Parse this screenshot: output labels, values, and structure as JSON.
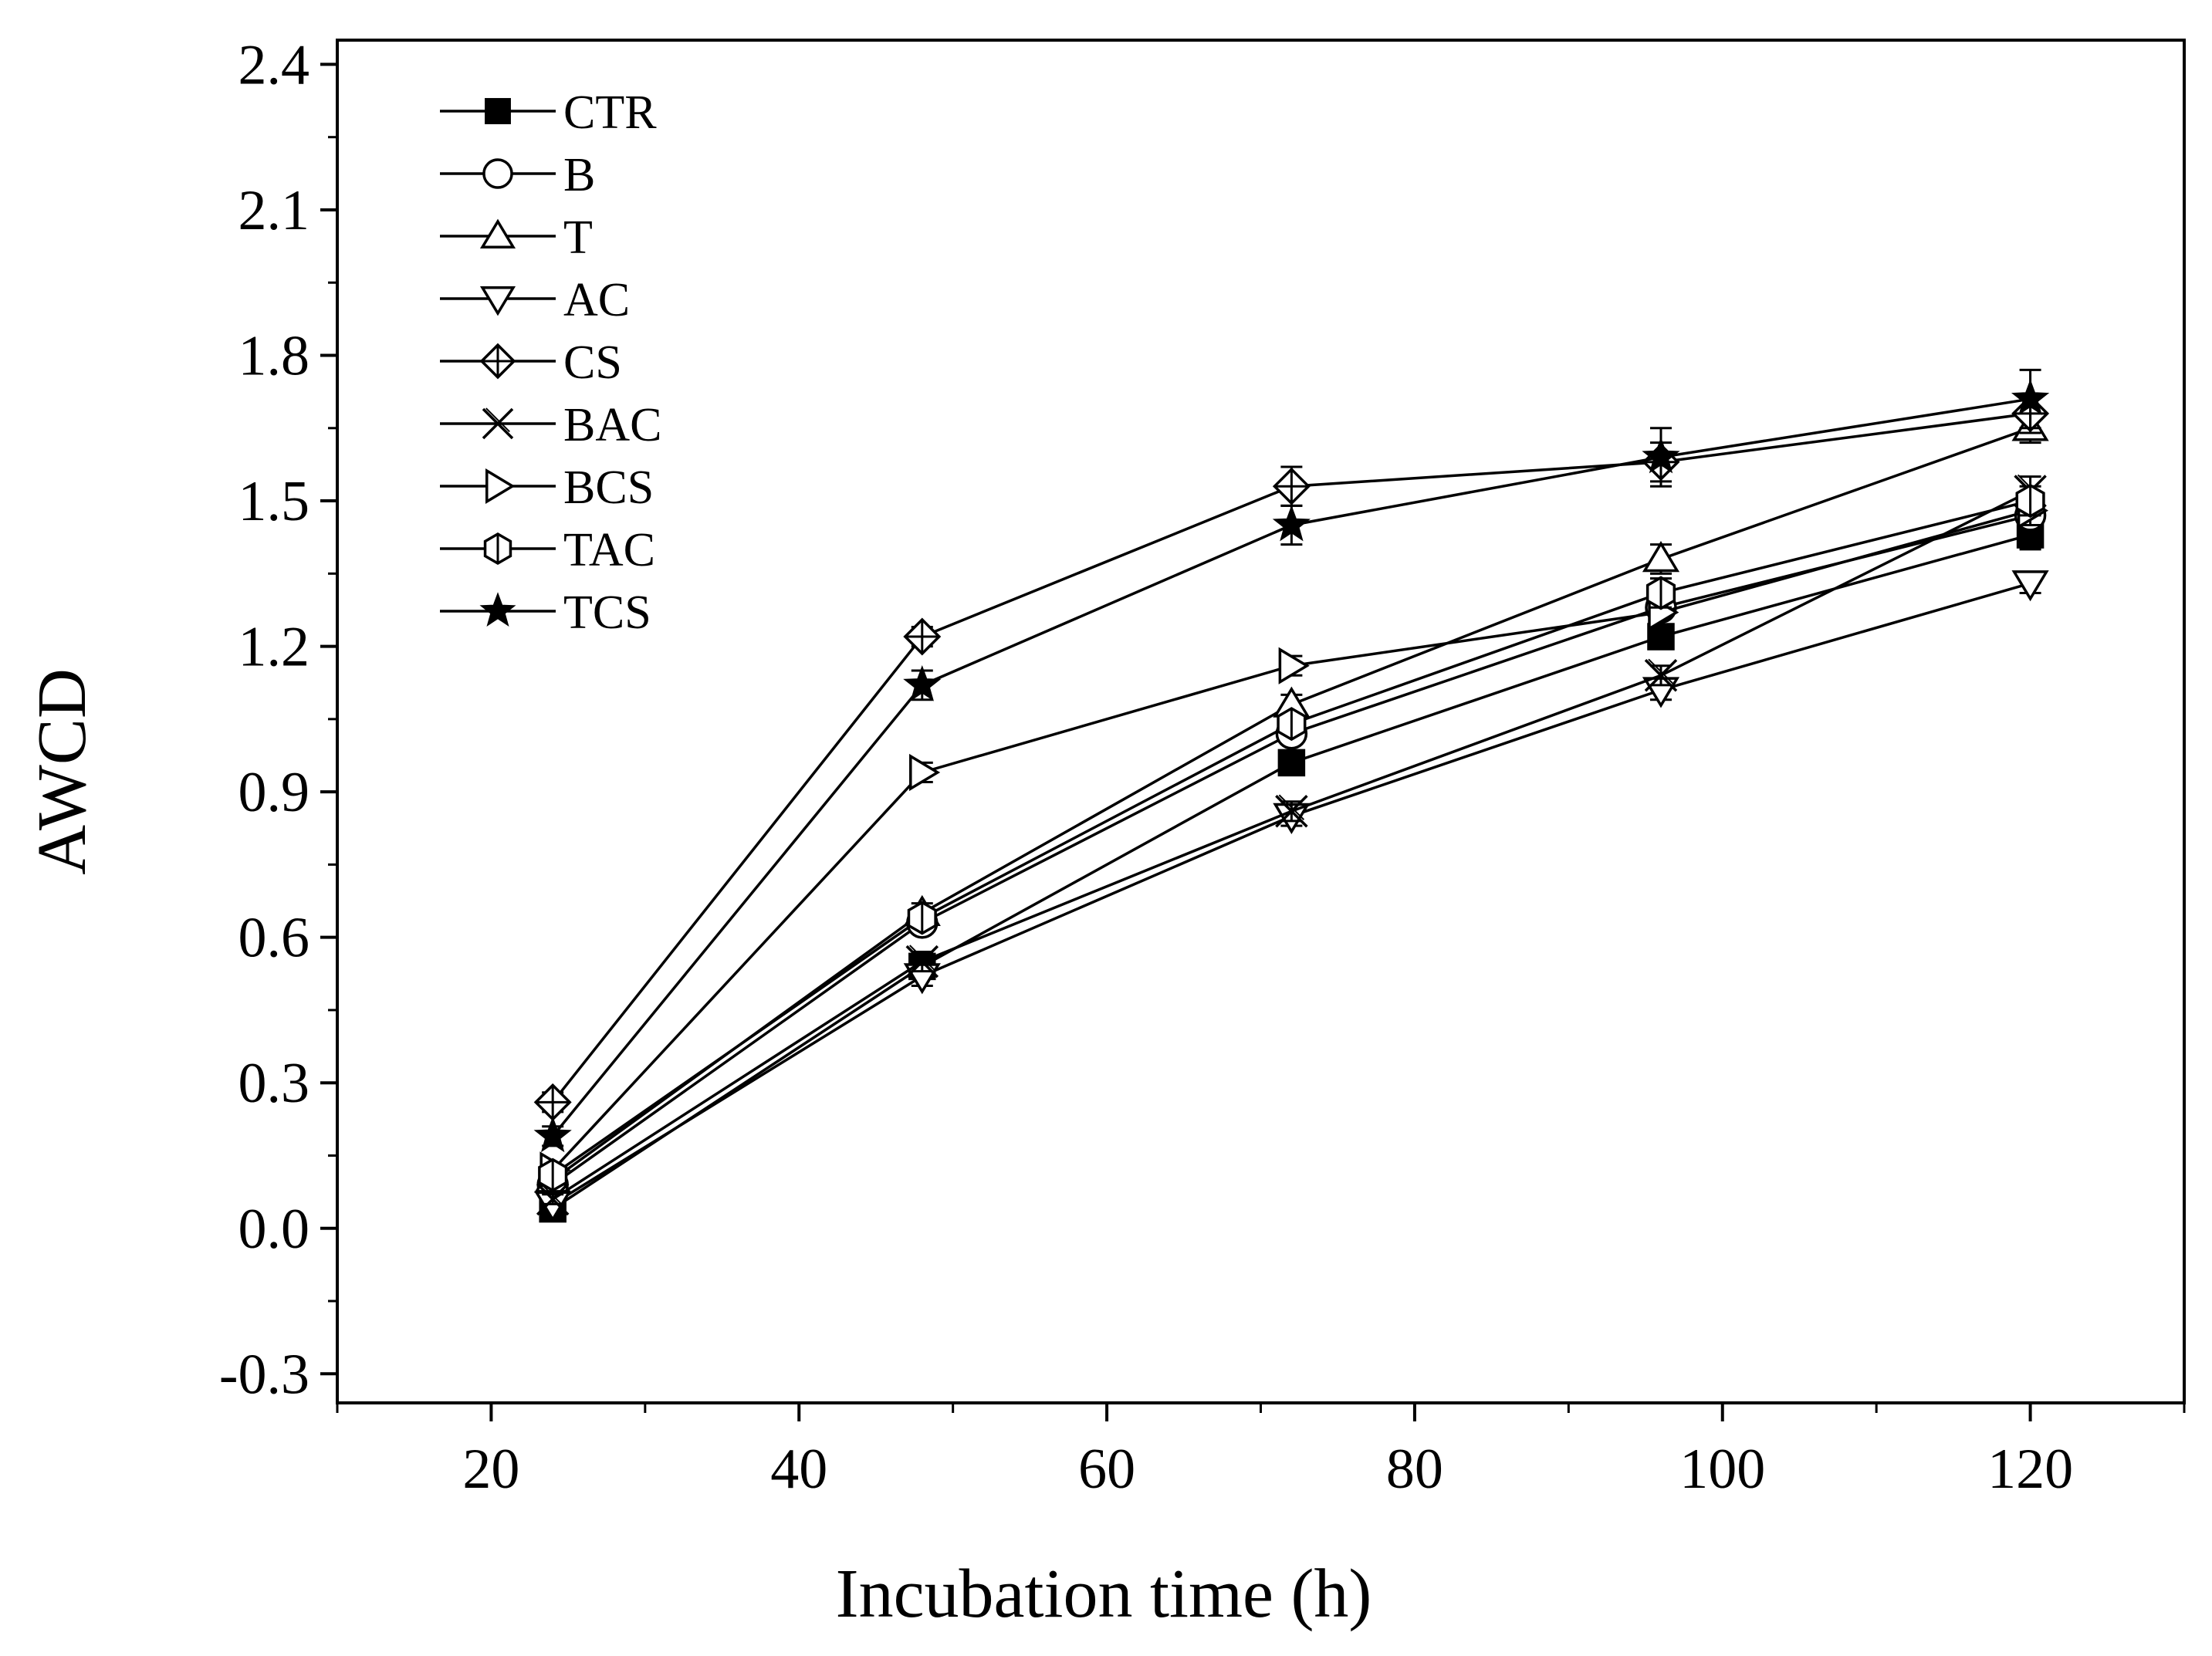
{
  "chart_data": {
    "type": "line",
    "title": "",
    "xlabel": "Incubation time (h)",
    "ylabel": "AWCD",
    "xlim": [
      10,
      130
    ],
    "ylim": [
      -0.36,
      2.45
    ],
    "xticks": [
      20,
      40,
      60,
      80,
      100,
      120
    ],
    "yticks": [
      -0.3,
      0.0,
      0.3,
      0.6,
      0.9,
      1.2,
      1.5,
      1.8,
      2.1,
      2.4
    ],
    "xtick_labels": [
      "20",
      "40",
      "60",
      "80",
      "100",
      "120"
    ],
    "ytick_labels": [
      "-0.3",
      "0.0",
      "0.3",
      "0.6",
      "0.9",
      "1.2",
      "1.5",
      "1.8",
      "2.1",
      "2.4"
    ],
    "legend_position": "top-left",
    "x": [
      24,
      48,
      72,
      96,
      120
    ],
    "series": [
      {
        "name": "CTR",
        "marker": "filled-square",
        "values": [
          0.04,
          0.54,
          0.96,
          1.22,
          1.43
        ],
        "errors": [
          0.01,
          0.02,
          0.02,
          0.02,
          0.03
        ]
      },
      {
        "name": "B",
        "marker": "circle",
        "values": [
          0.09,
          0.63,
          1.02,
          1.28,
          1.47
        ],
        "errors": [
          0.01,
          0.02,
          0.02,
          0.02,
          0.03
        ]
      },
      {
        "name": "T",
        "marker": "triangle-up",
        "values": [
          0.1,
          0.65,
          1.08,
          1.38,
          1.65
        ],
        "errors": [
          0.01,
          0.02,
          0.02,
          0.03,
          0.03
        ]
      },
      {
        "name": "AC",
        "marker": "triangle-down",
        "values": [
          0.05,
          0.52,
          0.85,
          1.11,
          1.33
        ],
        "errors": [
          0.01,
          0.02,
          0.02,
          0.02,
          0.02
        ]
      },
      {
        "name": "CS",
        "marker": "crossed-diamond",
        "values": [
          0.26,
          1.22,
          1.53,
          1.58,
          1.68
        ],
        "errors": [
          0.02,
          0.02,
          0.04,
          0.04,
          0.04
        ]
      },
      {
        "name": "BAC",
        "marker": "crossed-x",
        "values": [
          0.06,
          0.55,
          0.86,
          1.14,
          1.52
        ],
        "errors": [
          0.01,
          0.02,
          0.02,
          0.02,
          0.03
        ]
      },
      {
        "name": "BCS",
        "marker": "triangle-right",
        "values": [
          0.12,
          0.94,
          1.16,
          1.27,
          1.48
        ],
        "errors": [
          0.01,
          0.02,
          0.02,
          0.03,
          0.03
        ]
      },
      {
        "name": "TAC",
        "marker": "crossed-hexagon",
        "values": [
          0.11,
          0.64,
          1.04,
          1.31,
          1.5
        ],
        "errors": [
          0.01,
          0.02,
          0.02,
          0.03,
          0.03
        ]
      },
      {
        "name": "TCS",
        "marker": "filled-star",
        "values": [
          0.19,
          1.12,
          1.45,
          1.59,
          1.71
        ],
        "errors": [
          0.02,
          0.03,
          0.04,
          0.06,
          0.06
        ]
      }
    ]
  }
}
